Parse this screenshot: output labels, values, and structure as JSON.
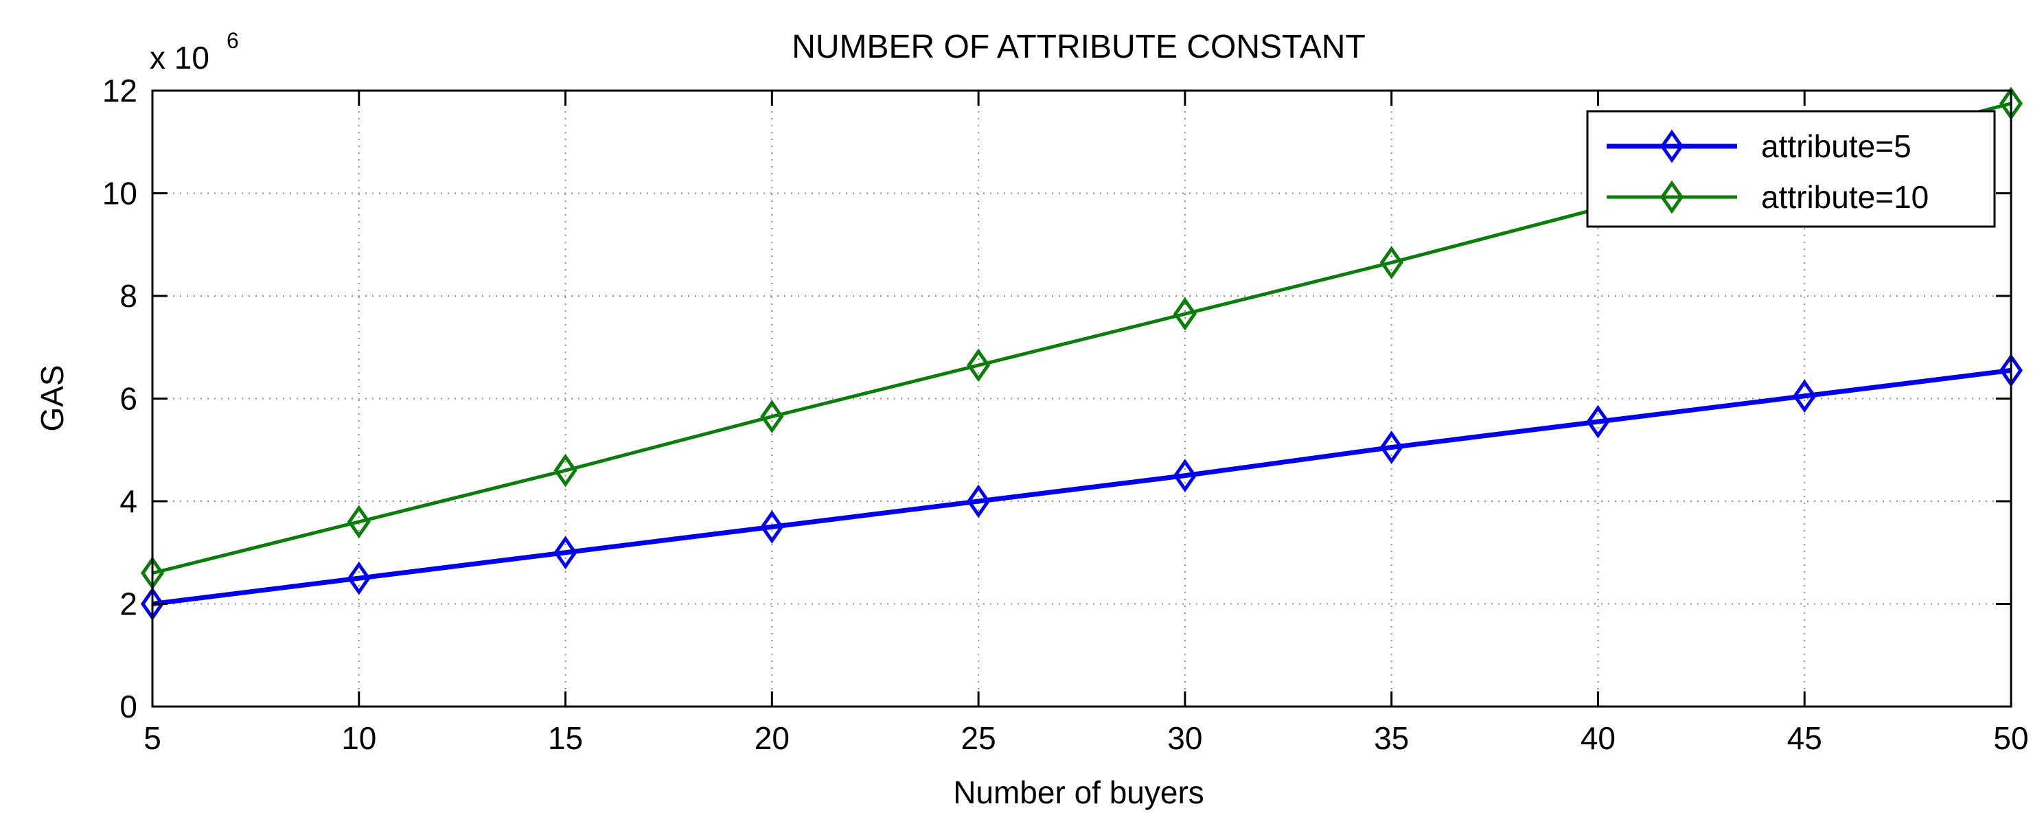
{
  "chart_data": {
    "type": "line",
    "title": "NUMBER OF ATTRIBUTE CONSTANT",
    "xlabel": "Number of buyers",
    "ylabel": "GAS",
    "y_multiplier_label": {
      "prefix": "x 10",
      "exponent": "6"
    },
    "x": [
      5,
      10,
      15,
      20,
      25,
      30,
      35,
      40,
      45,
      50
    ],
    "xlim": [
      5,
      50
    ],
    "ylim": [
      0,
      12
    ],
    "xticks": [
      5,
      10,
      15,
      20,
      25,
      30,
      35,
      40,
      45,
      50
    ],
    "yticks": [
      0,
      2,
      4,
      6,
      8,
      10,
      12
    ],
    "grid": true,
    "legend_position": "top-right",
    "series": [
      {
        "name": "attribute=5",
        "color": "#0000ee",
        "marker": "diamond",
        "values": [
          2.0,
          2.5,
          3.0,
          3.5,
          4.0,
          4.5,
          5.05,
          5.55,
          6.05,
          6.55
        ]
      },
      {
        "name": "attribute=10",
        "color": "#0a7d0a",
        "marker": "diamond",
        "values": [
          2.6,
          3.6,
          4.6,
          5.65,
          6.65,
          7.65,
          8.65,
          9.7,
          10.7,
          11.75
        ]
      }
    ]
  }
}
